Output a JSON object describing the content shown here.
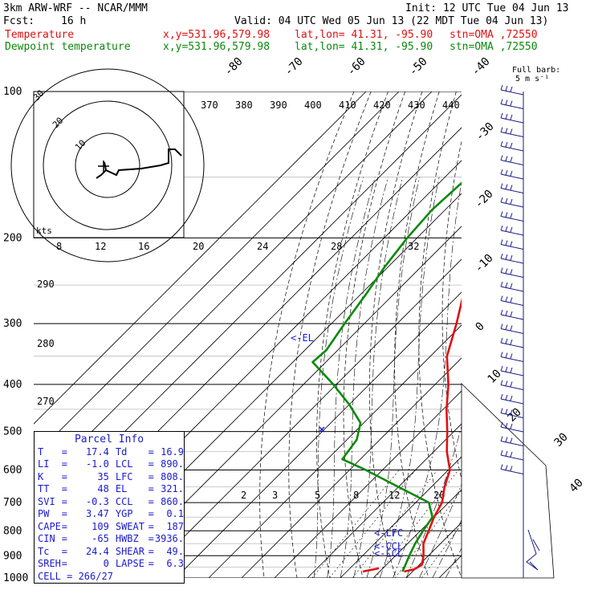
{
  "header": {
    "model": "3km ARW-WRF -- NCAR/MMM",
    "init": "Init: 12 UTC Tue 04 Jun 13",
    "fcst_label": "Fcst:",
    "fcst_value": "16 h",
    "valid": "Valid: 04 UTC Wed 05 Jun 13 (22 MDT Tue 04 Jun 13)",
    "temp_label": "Temperature",
    "dew_label": "Dewpoint temperature",
    "xy": "x,y=531.96,579.98",
    "latlon": "lat,lon= 41.31, -95.90",
    "stn": "stn=OMA ,72550"
  },
  "barb_legend": {
    "line1": "Full barb:",
    "line2": "5 m s⁻¹"
  },
  "hodo_label": "kts",
  "parcel": {
    "title": "Parcel Info",
    "rows": [
      [
        "T",
        "17.4",
        "Td",
        "16.9"
      ],
      [
        "LI",
        "-1.0",
        "LCL",
        "890."
      ],
      [
        "K",
        "35",
        "LFC",
        "808."
      ],
      [
        "TT",
        "48",
        "EL",
        "321."
      ],
      [
        "SVI",
        "-0.3",
        "CCL",
        "860."
      ],
      [
        "PW",
        "3.47",
        "YGP",
        "0.1"
      ],
      [
        "CAPE",
        "109",
        "SWEAT",
        "187"
      ],
      [
        "CIN",
        "-65",
        "HWBZ",
        "3936."
      ],
      [
        "Tc",
        "24.4",
        "SHEAR",
        "49."
      ],
      [
        "SREH",
        "0",
        "LAPSE",
        "6.3"
      ]
    ],
    "cell": "CELL = 266/27"
  },
  "colors": {
    "temperature": "#e01010",
    "dewpoint": "#0a8a0a",
    "annot": "#1a1ad0",
    "wind": "#1a1a8a"
  },
  "chart_data": {
    "type": "line",
    "title": "",
    "y_axis": "pressure (hPa), log scale",
    "pressure_ticks": [
      100,
      200,
      300,
      400,
      500,
      600,
      700,
      800,
      900,
      1000
    ],
    "pressure_range": [
      100,
      1000
    ],
    "isotherm_labels": [
      -80,
      -70,
      -60,
      -50,
      -40,
      -30,
      -20,
      -10,
      0,
      10,
      20,
      30,
      40
    ],
    "theta_labels_top": [
      370,
      380,
      390,
      400,
      410,
      420,
      430,
      440
    ],
    "theta_labels_left": [
      290,
      280,
      270
    ],
    "mixing_ratio_labels_200": [
      8,
      12,
      16,
      20,
      24,
      28,
      32
    ],
    "mixing_ratio_labels_700": [
      2,
      3,
      5,
      8,
      12,
      20
    ],
    "annotations": [
      {
        "text": "<-EL",
        "p": 321
      },
      {
        "text": "<-LFC",
        "p": 808
      },
      {
        "text": "<-CCL",
        "p": 860
      },
      {
        "text": "<-LCL",
        "p": 890
      }
    ],
    "series": [
      {
        "name": "Temperature",
        "points": [
          [
            100,
            -63.5
          ],
          [
            125,
            -62.5
          ],
          [
            150,
            -65.5
          ],
          [
            175,
            -63.5
          ],
          [
            190,
            -62.5
          ],
          [
            200,
            -62
          ],
          [
            230,
            -56
          ],
          [
            260,
            -49
          ],
          [
            300,
            -42
          ],
          [
            350,
            -35
          ],
          [
            400,
            -26
          ],
          [
            450,
            -19
          ],
          [
            500,
            -12
          ],
          [
            550,
            -6
          ],
          [
            600,
            0.5
          ],
          [
            650,
            4
          ],
          [
            700,
            8
          ],
          [
            750,
            10
          ],
          [
            800,
            12.5
          ],
          [
            850,
            14.8
          ],
          [
            900,
            18.5
          ],
          [
            940,
            20.8
          ],
          [
            960,
            19.8
          ],
          [
            970,
            17.4
          ]
        ]
      },
      {
        "name": "Dewpoint temperature",
        "points": [
          [
            100,
            -79.5
          ],
          [
            125,
            -81
          ],
          [
            150,
            -83
          ],
          [
            175,
            -84
          ],
          [
            200,
            -83
          ],
          [
            230,
            -81
          ],
          [
            260,
            -78.5
          ],
          [
            300,
            -76
          ],
          [
            340,
            -73.5
          ],
          [
            360,
            -74
          ],
          [
            400,
            -61
          ],
          [
            440,
            -50
          ],
          [
            480,
            -41
          ],
          [
            520,
            -37
          ],
          [
            570,
            -35.5
          ],
          [
            600,
            -25
          ],
          [
            650,
            -10
          ],
          [
            700,
            4
          ],
          [
            750,
            9.5
          ],
          [
            800,
            10.8
          ],
          [
            850,
            12.3
          ],
          [
            900,
            14.2
          ],
          [
            950,
            16.2
          ],
          [
            970,
            16.9
          ]
        ]
      }
    ]
  }
}
